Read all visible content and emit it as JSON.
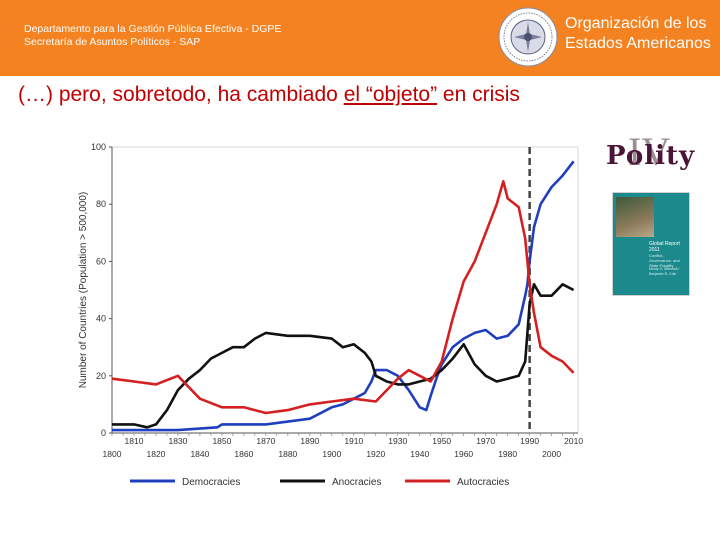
{
  "header": {
    "line1": "Departamento para la Gestión Pública Efectiva - DGPE",
    "line2": "Secretaría de Asuntos Políticos - SAP",
    "org_line1": "Organización de los",
    "org_line2": "Estados Americanos",
    "bg_color": "#f58220"
  },
  "slide": {
    "title_plain": "(…) pero, sobretodo, ha cambiado ",
    "title_underlined": "el “objeto”",
    "title_end": " en crisis"
  },
  "sidebar": {
    "polity_word": "Polity",
    "polity_numeral": "IV",
    "report_title": "Global Report 2011",
    "report_subtitle": "Conflict, Governance, and State Fragility",
    "report_authors": "Monty G. Marshall / Benjamin R. Cole"
  },
  "chart_data": {
    "type": "line",
    "title": "",
    "xlabel": "",
    "ylabel": "Number of Countries (Population > 500,000)",
    "xlim": [
      1800,
      2012
    ],
    "ylim": [
      0,
      100
    ],
    "x_ticks_top": [
      1810,
      1830,
      1850,
      1870,
      1890,
      1910,
      1930,
      1950,
      1970,
      1990,
      2010
    ],
    "x_ticks_bottom": [
      1800,
      1820,
      1840,
      1860,
      1880,
      1900,
      1920,
      1940,
      1960,
      1980,
      2000
    ],
    "y_ticks": [
      0,
      20,
      40,
      60,
      80,
      100
    ],
    "vline_x": 1990,
    "legend_position": "bottom",
    "series": [
      {
        "name": "Democracies",
        "color": "#1f3fbf",
        "x": [
          1800,
          1818,
          1830,
          1848,
          1850,
          1855,
          1870,
          1880,
          1890,
          1900,
          1905,
          1910,
          1915,
          1918,
          1920,
          1925,
          1930,
          1935,
          1940,
          1943,
          1945,
          1948,
          1950,
          1955,
          1960,
          1965,
          1970,
          1975,
          1980,
          1985,
          1988,
          1989,
          1990,
          1992,
          1995,
          2000,
          2005,
          2010
        ],
        "y": [
          1,
          1,
          1,
          2,
          3,
          3,
          3,
          4,
          5,
          9,
          10,
          12,
          14,
          18,
          22,
          22,
          20,
          15,
          9,
          8,
          13,
          20,
          24,
          30,
          33,
          35,
          36,
          33,
          34,
          38,
          48,
          52,
          60,
          72,
          80,
          86,
          90,
          95
        ]
      },
      {
        "name": "Anocracies",
        "color": "#111111",
        "x": [
          1800,
          1810,
          1816,
          1820,
          1825,
          1830,
          1835,
          1840,
          1845,
          1850,
          1855,
          1860,
          1865,
          1870,
          1880,
          1890,
          1900,
          1905,
          1910,
          1915,
          1918,
          1920,
          1925,
          1930,
          1935,
          1940,
          1945,
          1950,
          1955,
          1960,
          1965,
          1970,
          1975,
          1980,
          1985,
          1988,
          1990,
          1992,
          1995,
          2000,
          2005,
          2010
        ],
        "y": [
          3,
          3,
          2,
          3,
          8,
          15,
          19,
          22,
          26,
          28,
          30,
          30,
          33,
          35,
          34,
          34,
          33,
          30,
          31,
          28,
          25,
          20,
          18,
          17,
          17,
          18,
          19,
          22,
          26,
          31,
          24,
          20,
          18,
          19,
          20,
          25,
          45,
          52,
          48,
          48,
          52,
          50
        ]
      },
      {
        "name": "Autocracies",
        "color": "#d42020",
        "x": [
          1800,
          1810,
          1820,
          1830,
          1840,
          1850,
          1860,
          1870,
          1880,
          1890,
          1900,
          1910,
          1920,
          1925,
          1930,
          1935,
          1940,
          1945,
          1950,
          1955,
          1960,
          1965,
          1970,
          1975,
          1978,
          1980,
          1985,
          1988,
          1990,
          1992,
          1995,
          2000,
          2005,
          2010
        ],
        "y": [
          19,
          18,
          17,
          20,
          12,
          9,
          9,
          7,
          8,
          10,
          11,
          12,
          11,
          15,
          19,
          22,
          20,
          18,
          25,
          40,
          53,
          60,
          70,
          80,
          88,
          82,
          79,
          68,
          52,
          42,
          30,
          27,
          25,
          21
        ]
      }
    ]
  }
}
